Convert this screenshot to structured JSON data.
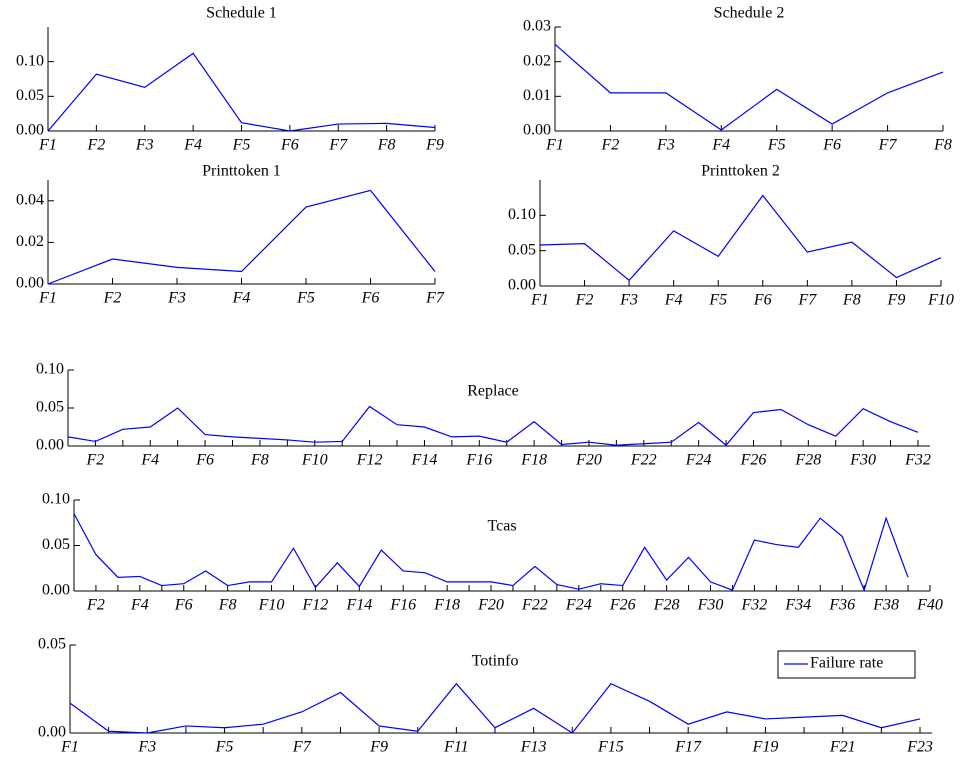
{
  "chart_data": [
    {
      "type": "line",
      "title": "Schedule 1",
      "color": "#0000ff",
      "categories": [
        "F1",
        "F2",
        "F3",
        "F4",
        "F5",
        "F6",
        "F7",
        "F8",
        "F9"
      ],
      "values": [
        0,
        0.082,
        0.063,
        0.112,
        0.012,
        0,
        0.01,
        0.011,
        0.005
      ],
      "ylim": [
        0,
        0.15
      ],
      "yticks": [
        {
          "value": 0,
          "label": "0.00"
        },
        {
          "value": 0.05,
          "label": "0.05"
        },
        {
          "value": 0.1,
          "label": "0.10"
        }
      ]
    },
    {
      "type": "line",
      "title": "Schedule 2",
      "color": "#0000ff",
      "categories": [
        "F1",
        "F2",
        "F3",
        "F4",
        "F5",
        "F6",
        "F7",
        "F8"
      ],
      "values": [
        0.025,
        0.011,
        0.011,
        0.0003,
        0.012,
        0.002,
        0.011,
        0.017
      ],
      "ylim": [
        0,
        0.03
      ],
      "yticks": [
        {
          "value": 0,
          "label": "0.00"
        },
        {
          "value": 0.01,
          "label": "0.01"
        },
        {
          "value": 0.02,
          "label": "0.02"
        },
        {
          "value": 0.03,
          "label": "0.03"
        }
      ]
    },
    {
      "type": "line",
      "title": "Printtoken 1",
      "color": "#0000ff",
      "categories": [
        "F1",
        "F2",
        "F3",
        "F4",
        "F5",
        "F6",
        "F7"
      ],
      "values": [
        0,
        0.012,
        0.008,
        0.006,
        0.037,
        0.045,
        0.006
      ],
      "ylim": [
        0,
        0.05
      ],
      "yticks": [
        {
          "value": 0,
          "label": "0.00"
        },
        {
          "value": 0.02,
          "label": "0.02"
        },
        {
          "value": 0.04,
          "label": "0.04"
        }
      ]
    },
    {
      "type": "line",
      "title": "Printtoken 2",
      "color": "#0000ff",
      "categories": [
        "F1",
        "F2",
        "F3",
        "F4",
        "F5",
        "F6",
        "F7",
        "F8",
        "F9",
        "F10"
      ],
      "values": [
        0.058,
        0.06,
        0.008,
        0.078,
        0.042,
        0.128,
        0.048,
        0.062,
        0.012,
        0.04
      ],
      "ylim": [
        0,
        0.15
      ],
      "yticks": [
        {
          "value": 0,
          "label": "0.00"
        },
        {
          "value": 0.05,
          "label": "0.05"
        },
        {
          "value": 0.1,
          "label": "0.10"
        }
      ]
    },
    {
      "type": "line",
      "title": "Replace",
      "color": "#0000ff",
      "categories": [
        null,
        "F2",
        null,
        "F4",
        null,
        "F6",
        null,
        "F8",
        null,
        "F10",
        null,
        "F12",
        null,
        "F14",
        null,
        "F16",
        null,
        "F18",
        null,
        "F20",
        null,
        "F22",
        null,
        "F24",
        null,
        "F26",
        null,
        "F28",
        null,
        "F30",
        null,
        "F32"
      ],
      "values": [
        0.012,
        0.006,
        0.022,
        0.025,
        0.05,
        0.015,
        0.012,
        0.01,
        0.008,
        0.005,
        0.006,
        0.052,
        0.028,
        0.025,
        0.012,
        0.013,
        0.005,
        0.032,
        0.002,
        0.005,
        0.001,
        0.003,
        0.005,
        0.031,
        0.001,
        0.044,
        0.048,
        0.028,
        0.013,
        0.049,
        0.032,
        0.018
      ],
      "ylim": [
        0,
        0.1
      ],
      "yticks": [
        {
          "value": 0,
          "label": "0.00"
        },
        {
          "value": 0.05,
          "label": "0.05"
        },
        {
          "value": 0.1,
          "label": "0.10"
        }
      ]
    },
    {
      "type": "line",
      "title": "Tcas",
      "color": "#0000ff",
      "categories": [
        null,
        "F2",
        null,
        "F4",
        null,
        "F6",
        null,
        "F8",
        null,
        "F10",
        null,
        "F12",
        null,
        "F14",
        null,
        "F16",
        null,
        "F18",
        null,
        "F20",
        null,
        "F22",
        null,
        "F24",
        null,
        "F26",
        null,
        "F28",
        null,
        "F30",
        null,
        "F32",
        null,
        "F34",
        null,
        "F36",
        null,
        "F38",
        null,
        "F40"
      ],
      "values": [
        0.085,
        0.04,
        0.015,
        0.016,
        0.006,
        0.008,
        0.022,
        0.006,
        0.01,
        0.01,
        0.047,
        0.004,
        0.031,
        0.005,
        0.045,
        0.022,
        0.02,
        0.01,
        0.01,
        0.01,
        0.006,
        0.027,
        0.007,
        0.002,
        0.008,
        0.006,
        0.048,
        0.012,
        0.037,
        0.01,
        0.001,
        0.056,
        0.051,
        0.048,
        0.08,
        0.06,
        0.001,
        0.08,
        0.015,
        null
      ],
      "ylim": [
        0,
        0.1
      ],
      "yticks": [
        {
          "value": 0,
          "label": "0.00"
        },
        {
          "value": 0.05,
          "label": "0.05"
        },
        {
          "value": 0.1,
          "label": "0.10"
        }
      ]
    },
    {
      "type": "line",
      "title": "Totinfo",
      "legend": "upper right",
      "categories": [
        "F1",
        null,
        "F3",
        null,
        "F5",
        null,
        "F7",
        null,
        "F9",
        null,
        "F11",
        null,
        "F13",
        null,
        "F15",
        null,
        "F17",
        null,
        "F19",
        null,
        "F21",
        null,
        "F23"
      ],
      "series": [
        {
          "name": "Failure rate",
          "color": "#0000ff",
          "values": [
            0.017,
            0.001,
            0,
            0.004,
            0.003,
            0.005,
            0.012,
            0.023,
            0.004,
            0.001,
            0.028,
            0.003,
            0.014,
            0,
            0.028,
            0.018,
            0.005,
            0.012,
            0.008,
            0.009,
            0.01,
            0.003,
            0.008
          ]
        }
      ],
      "ylim": [
        0,
        0.05
      ],
      "yticks": [
        {
          "value": 0,
          "label": "0.00"
        },
        {
          "value": 0.05,
          "label": "0.05"
        }
      ]
    }
  ]
}
